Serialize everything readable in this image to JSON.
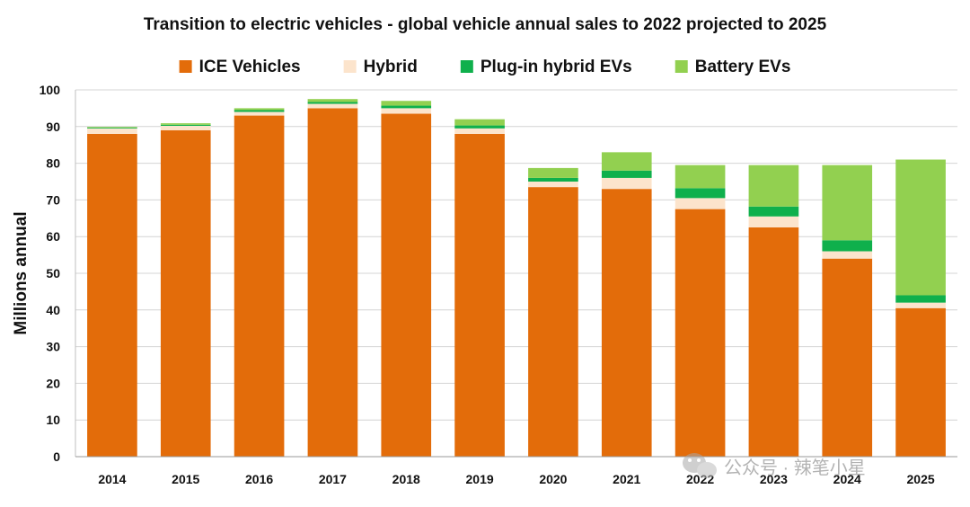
{
  "chart_data": {
    "type": "bar",
    "stacked": true,
    "title": "Transition to electric vehicles  - global vehicle annual sales to 2022 projected to 2025",
    "xlabel": "",
    "ylabel": "Millions annual",
    "ylim": [
      0,
      100
    ],
    "yticks": [
      0,
      10,
      20,
      30,
      40,
      50,
      60,
      70,
      80,
      90,
      100
    ],
    "grid": true,
    "legend_position": "top",
    "categories": [
      "2014",
      "2015",
      "2016",
      "2017",
      "2018",
      "2019",
      "2020",
      "2021",
      "2022",
      "2023",
      "2024",
      "2025"
    ],
    "series": [
      {
        "name": "ICE Vehicles",
        "color": "#E36C0A",
        "values": [
          88,
          89,
          93,
          95,
          93.5,
          88,
          73.5,
          73,
          67.5,
          62.5,
          54,
          40.5
        ]
      },
      {
        "name": "Hybrid",
        "color": "#FCE4CC",
        "values": [
          1.5,
          1.2,
          1,
          1.2,
          1.5,
          1.5,
          1.5,
          3,
          3,
          3,
          2,
          1.5
        ]
      },
      {
        "name": "Plug-in hybrid EVs",
        "color": "#0FB04C",
        "values": [
          0.2,
          0.3,
          0.5,
          0.5,
          0.7,
          0.8,
          1,
          2,
          2.7,
          2.7,
          3,
          2
        ]
      },
      {
        "name": "Battery EVs",
        "color": "#92D050",
        "values": [
          0.2,
          0.4,
          0.5,
          0.8,
          1.3,
          1.7,
          2.7,
          5,
          6.3,
          11.3,
          20.5,
          37
        ]
      }
    ]
  },
  "watermark": "公众号 · 辣笔小星"
}
